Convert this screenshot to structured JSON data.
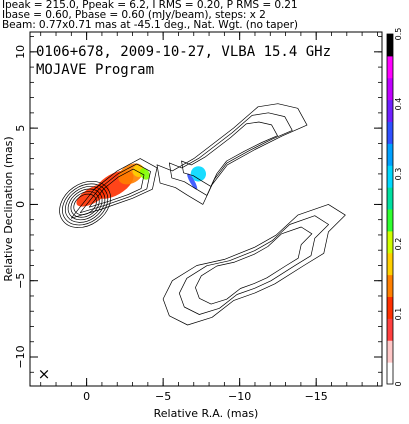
{
  "header": {
    "line1": "Ipeak = 215.0, Ppeak = 6.2, I RMS = 0.20, P RMS = 0.21",
    "line2": "Ibase = 0.60, Pbase = 0.60 (mJy/beam), steps: x 2",
    "line3": "Beam: 0.77x0.71 mas at -45.1 deg., Nat. Wgt. (no taper)"
  },
  "chart_data": {
    "type": "contour",
    "title": "0106+678, 2009-10-27, VLBA 15.4 GHz",
    "subtitle": "MOJAVE Program",
    "xlabel": "Relative R.A. (mas)",
    "ylabel": "Relative Declination (mas)",
    "xlim": [
      3.7,
      -19.3
    ],
    "ylim": [
      -11.9,
      11.3
    ],
    "x_ticks": [
      0,
      -5,
      -10,
      -15
    ],
    "x_tick_labels": [
      "0",
      "−5",
      "−10",
      "−15"
    ],
    "y_ticks": [
      10,
      5,
      0,
      -5,
      -10
    ],
    "y_tick_labels": [
      "10",
      "5",
      "0",
      "−5",
      "−10"
    ],
    "beam_symbol": "×",
    "colorbar": {
      "range": [
        0,
        0.5
      ],
      "ticks": [
        0,
        0.1,
        0.2,
        0.3,
        0.4,
        0.5
      ],
      "tick_labels": [
        "0",
        "0.1",
        "0.2",
        "0.3",
        "0.4",
        "0.5"
      ],
      "colors": [
        "#ffffff",
        "#ffc8c8",
        "#ff4040",
        "#ff3000",
        "#ff8000",
        "#ffd000",
        "#d0ff00",
        "#30ff30",
        "#00e0a0",
        "#00d8ff",
        "#00a0ff",
        "#3050ff",
        "#7020ff",
        "#c000ff",
        "#ff00ff",
        "#000000"
      ]
    },
    "contours": [
      {
        "region": "core",
        "cx": 0.1,
        "cy": 0.0,
        "rx": [
          0.8,
          1.0,
          1.2,
          1.4,
          1.6,
          1.8
        ],
        "ry": [
          0.6,
          0.75,
          0.9,
          1.05,
          1.2,
          1.35
        ],
        "angle": 35
      },
      {
        "region": "inner-jet",
        "points": [
          [
            1.0,
            -0.9
          ],
          [
            -0.5,
            1.0
          ],
          [
            -2.0,
            2.2
          ],
          [
            -3.5,
            3.0
          ],
          [
            -4.6,
            2.4
          ],
          [
            -4.3,
            1.0
          ],
          [
            -3.0,
            0.4
          ],
          [
            -1.0,
            -0.3
          ]
        ]
      },
      {
        "region": "outer-jet",
        "points": [
          [
            -4.6,
            2.6
          ],
          [
            -5.6,
            2.2
          ],
          [
            -7.0,
            3.0
          ],
          [
            -9.6,
            5.0
          ],
          [
            -11.2,
            6.4
          ],
          [
            -12.5,
            6.6
          ],
          [
            -13.8,
            6.3
          ],
          [
            -14.4,
            5.2
          ],
          [
            -12.8,
            4.5
          ],
          [
            -11.0,
            3.6
          ],
          [
            -9.2,
            2.6
          ],
          [
            -8.2,
            1.3
          ],
          [
            -7.6,
            0.0
          ],
          [
            -6.6,
            0.6
          ],
          [
            -5.8,
            1.1
          ],
          [
            -4.8,
            1.4
          ]
        ]
      },
      {
        "region": "counter-lobe",
        "points": [
          [
            -5.0,
            -6.2
          ],
          [
            -5.6,
            -5.0
          ],
          [
            -7.2,
            -4.0
          ],
          [
            -9.0,
            -3.6
          ],
          [
            -11.0,
            -2.8
          ],
          [
            -12.4,
            -2.0
          ],
          [
            -13.8,
            -0.7
          ],
          [
            -15.8,
            0.0
          ],
          [
            -16.9,
            -0.7
          ],
          [
            -15.8,
            -1.8
          ],
          [
            -15.5,
            -3.2
          ],
          [
            -14.2,
            -4.0
          ],
          [
            -12.3,
            -5.2
          ],
          [
            -11.0,
            -5.8
          ],
          [
            -9.6,
            -6.3
          ],
          [
            -8.2,
            -7.4
          ],
          [
            -6.6,
            -7.9
          ],
          [
            -5.4,
            -7.3
          ]
        ]
      }
    ],
    "polarization": [
      {
        "x": -0.4,
        "y": 0.6,
        "rx": 1.2,
        "ry": 0.5,
        "color": "#ff3000"
      },
      {
        "x": -1.8,
        "y": 1.3,
        "rx": 1.4,
        "ry": 0.7,
        "color": "#ff3000"
      },
      {
        "x": -2.9,
        "y": 2.0,
        "rx": 0.9,
        "ry": 0.6,
        "color": "#ff8000"
      },
      {
        "x": -3.4,
        "y": 2.2,
        "rx": 0.4,
        "ry": 0.4,
        "color": "#ffd000"
      },
      {
        "x": -3.8,
        "y": 2.0,
        "rx": 0.3,
        "ry": 0.4,
        "color": "#80ff00"
      },
      {
        "x": -7.3,
        "y": 2.0,
        "rx": 0.5,
        "ry": 0.5,
        "color": "#00d8ff"
      },
      {
        "x": -6.9,
        "y": 1.5,
        "rx": 0.15,
        "ry": 0.6,
        "color": "#3050ff"
      }
    ]
  }
}
